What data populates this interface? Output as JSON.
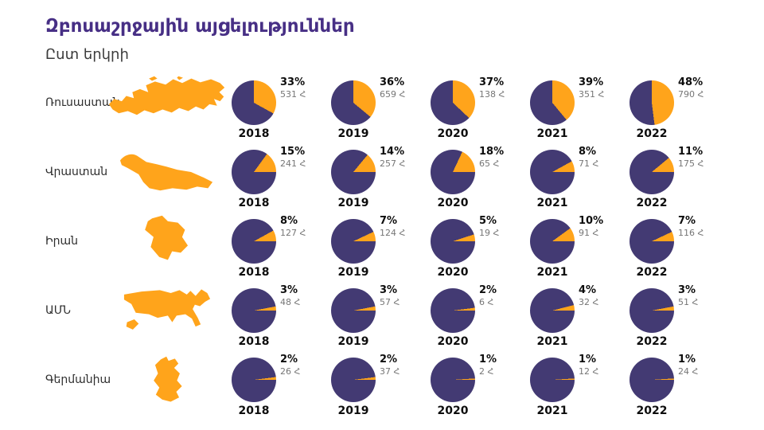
{
  "header": {
    "title": "Զբոսաշրջային այցելություններ",
    "subtitle": "Ըստ երկրի"
  },
  "colors": {
    "pie_rest": "#433A73",
    "pie_share": "#FFA41B",
    "map_fill": "#FFA41B",
    "title_text": "#472F85",
    "percent_text": "#0d0d0d",
    "value_text": "#767676"
  },
  "unit_symbol": "Հ",
  "chart_data": {
    "type": "pie",
    "title": "Զբոսաշրջային այցելություններ",
    "subtitle": "Ըստ երկրի",
    "years": [
      "2018",
      "2019",
      "2020",
      "2021",
      "2022"
    ],
    "legend": {
      "share_color": "#FFA41B",
      "rest_color": "#433A73"
    },
    "rows": [
      {
        "country": "Ռուսաստան",
        "map": "russia",
        "map_icon": "russia-map",
        "slice_anchor": "top",
        "data": [
          {
            "year": "2018",
            "percent": 33,
            "visitors_thousands": 531,
            "value_label": "531 Հ"
          },
          {
            "year": "2019",
            "percent": 36,
            "visitors_thousands": 659,
            "value_label": "659 Հ"
          },
          {
            "year": "2020",
            "percent": 37,
            "visitors_thousands": 138,
            "value_label": "138 Հ"
          },
          {
            "year": "2021",
            "percent": 39,
            "visitors_thousands": 351,
            "value_label": "351 Հ"
          },
          {
            "year": "2022",
            "percent": 48,
            "visitors_thousands": 790,
            "value_label": "790 Հ"
          }
        ]
      },
      {
        "country": "Վրաստան",
        "map": "georgia",
        "map_icon": "georgia-map",
        "slice_anchor": "right-end",
        "data": [
          {
            "year": "2018",
            "percent": 15,
            "visitors_thousands": 241,
            "value_label": "241 Հ"
          },
          {
            "year": "2019",
            "percent": 14,
            "visitors_thousands": 257,
            "value_label": "257 Հ"
          },
          {
            "year": "2020",
            "percent": 18,
            "visitors_thousands": 65,
            "value_label": "65 Հ"
          },
          {
            "year": "2021",
            "percent": 8,
            "visitors_thousands": 71,
            "value_label": "71 Հ"
          },
          {
            "year": "2022",
            "percent": 11,
            "visitors_thousands": 175,
            "value_label": "175 Հ"
          }
        ]
      },
      {
        "country": "Իրան",
        "map": "iran",
        "map_icon": "iran-map",
        "slice_anchor": "right-end",
        "data": [
          {
            "year": "2018",
            "percent": 8,
            "visitors_thousands": 127,
            "value_label": "127 Հ"
          },
          {
            "year": "2019",
            "percent": 7,
            "visitors_thousands": 124,
            "value_label": "124 Հ"
          },
          {
            "year": "2020",
            "percent": 5,
            "visitors_thousands": 19,
            "value_label": "19 Հ"
          },
          {
            "year": "2021",
            "percent": 10,
            "visitors_thousands": 91,
            "value_label": "91 Հ"
          },
          {
            "year": "2022",
            "percent": 7,
            "visitors_thousands": 116,
            "value_label": "116 Հ"
          }
        ]
      },
      {
        "country": "ԱՄՆ",
        "map": "usa",
        "map_icon": "usa-map",
        "slice_anchor": "right-end",
        "data": [
          {
            "year": "2018",
            "percent": 3,
            "visitors_thousands": 48,
            "value_label": "48 Հ"
          },
          {
            "year": "2019",
            "percent": 3,
            "visitors_thousands": 57,
            "value_label": "57 Հ"
          },
          {
            "year": "2020",
            "percent": 2,
            "visitors_thousands": 6,
            "value_label": "6 Հ"
          },
          {
            "year": "2021",
            "percent": 4,
            "visitors_thousands": 32,
            "value_label": "32 Հ"
          },
          {
            "year": "2022",
            "percent": 3,
            "visitors_thousands": 51,
            "value_label": "51 Հ"
          }
        ]
      },
      {
        "country": "Գերմանիա",
        "map": "germany",
        "map_icon": "germany-map",
        "slice_anchor": "right-end",
        "data": [
          {
            "year": "2018",
            "percent": 2,
            "visitors_thousands": 26,
            "value_label": "26 Հ"
          },
          {
            "year": "2019",
            "percent": 2,
            "visitors_thousands": 37,
            "value_label": "37 Հ"
          },
          {
            "year": "2020",
            "percent": 1,
            "visitors_thousands": 2,
            "value_label": "2 Հ"
          },
          {
            "year": "2021",
            "percent": 1,
            "visitors_thousands": 12,
            "value_label": "12 Հ"
          },
          {
            "year": "2022",
            "percent": 1,
            "visitors_thousands": 24,
            "value_label": "24 Հ"
          }
        ]
      }
    ]
  }
}
